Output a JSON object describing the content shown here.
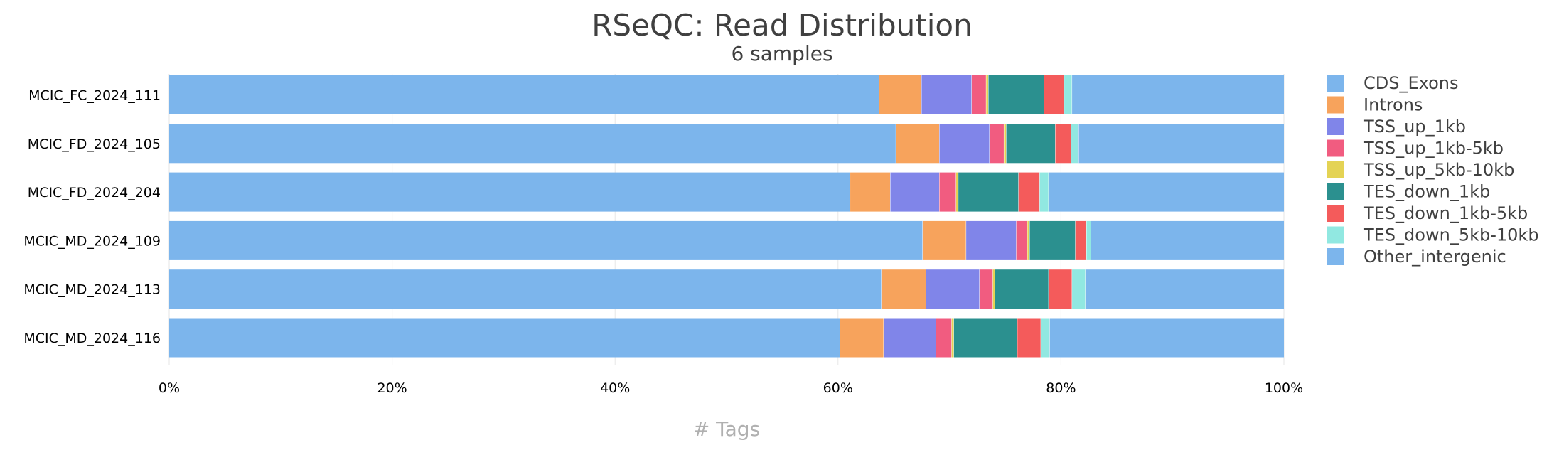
{
  "chart_data": {
    "type": "bar",
    "orientation": "horizontal",
    "stacked": true,
    "normalized": true,
    "title": "RSeQC: Read Distribution",
    "subtitle": "6 samples",
    "xlabel": "# Tags",
    "ylabel": "",
    "xlim": [
      0,
      100
    ],
    "xticks": [
      "0%",
      "20%",
      "40%",
      "60%",
      "80%",
      "100%"
    ],
    "grid": true,
    "legend_position": "right",
    "categories": [
      "MCIC_FC_2024_111",
      "MCIC_FD_2024_105",
      "MCIC_FD_2024_204",
      "MCIC_MD_2024_109",
      "MCIC_MD_2024_113",
      "MCIC_MD_2024_116"
    ],
    "series": [
      {
        "name": "CDS_Exons",
        "color": "#7cb5ec",
        "values": [
          63.7,
          65.2,
          61.1,
          67.6,
          63.9,
          60.2
        ]
      },
      {
        "name": "Introns",
        "color": "#f7a35c",
        "values": [
          3.8,
          3.9,
          3.6,
          3.9,
          4.0,
          3.9
        ]
      },
      {
        "name": "TSS_up_1kb",
        "color": "#8085e9",
        "values": [
          4.5,
          4.5,
          4.4,
          4.5,
          4.8,
          4.7
        ]
      },
      {
        "name": "TSS_up_1kb-5kb",
        "color": "#f15c80",
        "values": [
          1.3,
          1.3,
          1.5,
          1.0,
          1.2,
          1.4
        ]
      },
      {
        "name": "TSS_up_5kb-10kb",
        "color": "#e4d354",
        "values": [
          0.2,
          0.2,
          0.2,
          0.2,
          0.2,
          0.2
        ]
      },
      {
        "name": "TES_down_1kb",
        "color": "#2b908f",
        "values": [
          5.0,
          4.4,
          5.4,
          4.1,
          4.8,
          5.7
        ]
      },
      {
        "name": "TES_down_1kb-5kb",
        "color": "#f45b5b",
        "values": [
          1.8,
          1.4,
          1.9,
          1.0,
          2.1,
          2.1
        ]
      },
      {
        "name": "TES_down_5kb-10kb",
        "color": "#91e8e1",
        "values": [
          0.7,
          0.7,
          0.8,
          0.4,
          1.2,
          0.8
        ]
      },
      {
        "name": "Other_intergenic",
        "color": "#7cb5ec",
        "values": [
          19.0,
          18.4,
          21.1,
          17.3,
          17.8,
          21.0
        ]
      }
    ]
  }
}
